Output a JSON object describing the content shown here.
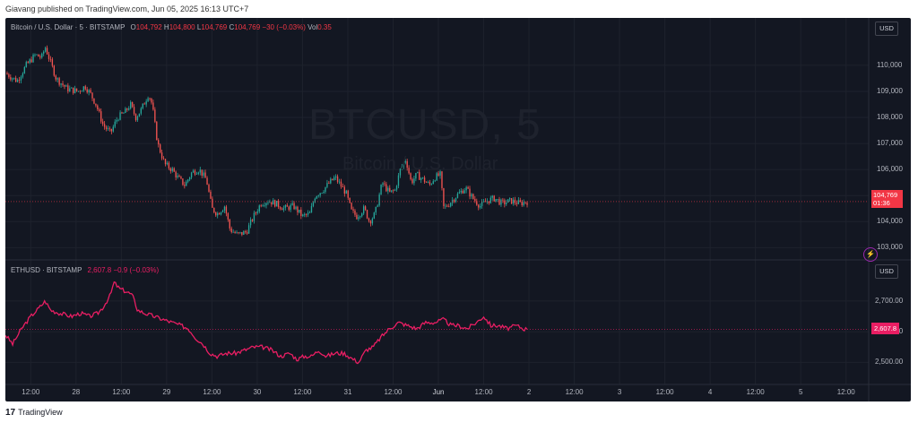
{
  "header": {
    "published_text": "Giavang published on TradingView.com, Jun 05, 2025 16:13 UTC+7"
  },
  "btc_pane": {
    "symbol": "Bitcoin / U.S. Dollar · 5 · BITSTAMP",
    "open_label": "O",
    "open_value": "104,792",
    "high_label": "H",
    "high_value": "104,800",
    "low_label": "L",
    "low_value": "104,769",
    "close_label": "C",
    "close_value": "104,769",
    "change_value": "−30 (−0.03%)",
    "vol_label": "Vol",
    "vol_value": "0.35",
    "currency": "USD",
    "watermark_ticker": "BTCUSD, 5",
    "watermark_name": "Bitcoin / U.S. Dollar",
    "last_price_tag": "104,769",
    "countdown": "01:36",
    "bolt_glyph": "⚡"
  },
  "eth_pane": {
    "symbol": "ETHUSD · BITSTAMP",
    "last_value": "2,607.8",
    "change_value": "−0.9 (−0.03%)",
    "currency": "USD",
    "last_price_tag": "2,607.8"
  },
  "footer": {
    "logo_glyph": "17",
    "brand": "TradingView"
  },
  "colors": {
    "background": "#131722",
    "up": "#26a69a",
    "down": "#ef5350",
    "eth_line": "#e91e63",
    "grid": "#1e222d"
  },
  "chart_data": [
    {
      "type": "candlestick",
      "title": "Bitcoin / U.S. Dollar · 5 · BITSTAMP",
      "ylim": [
        102600,
        111200
      ],
      "yticks": [
        103000,
        104000,
        105000,
        106000,
        107000,
        108000,
        109000,
        110000
      ],
      "ytick_labels": [
        "103,000",
        "104,000",
        "105,000",
        "106,000",
        "107,000",
        "108,000",
        "109,000",
        "110,000"
      ],
      "x_ticks": [
        "12:00",
        "28",
        "12:00",
        "29",
        "12:00",
        "30",
        "12:00",
        "31",
        "12:00",
        "Jun",
        "12:00",
        "2",
        "12:00",
        "3",
        "12:00",
        "4",
        "12:00",
        "5",
        "12:00"
      ],
      "x_tick_times": [
        0.5,
        1,
        1.5,
        2,
        2.5,
        3,
        3.5,
        4,
        4.5,
        5,
        5.5,
        6,
        6.5,
        7,
        7.5,
        8,
        8.5,
        9,
        9.5
      ],
      "xlim": [
        0.22,
        9.75
      ],
      "closes_time": [
        [
          0.22,
          109700
        ],
        [
          0.35,
          109400
        ],
        [
          0.45,
          110000
        ],
        [
          0.55,
          110400
        ],
        [
          0.62,
          110300
        ],
        [
          0.66,
          110700
        ],
        [
          0.72,
          110100
        ],
        [
          0.78,
          109500
        ],
        [
          0.9,
          109100
        ],
        [
          1.02,
          109000
        ],
        [
          1.1,
          109200
        ],
        [
          1.16,
          108900
        ],
        [
          1.22,
          108500
        ],
        [
          1.3,
          107700
        ],
        [
          1.38,
          107400
        ],
        [
          1.46,
          108000
        ],
        [
          1.54,
          108200
        ],
        [
          1.6,
          108500
        ],
        [
          1.66,
          108000
        ],
        [
          1.72,
          108300
        ],
        [
          1.8,
          108900
        ],
        [
          1.84,
          108500
        ],
        [
          1.9,
          107000
        ],
        [
          1.98,
          106200
        ],
        [
          2.06,
          106000
        ],
        [
          2.12,
          105700
        ],
        [
          2.2,
          105400
        ],
        [
          2.28,
          105900
        ],
        [
          2.36,
          106000
        ],
        [
          2.44,
          105600
        ],
        [
          2.5,
          104500
        ],
        [
          2.56,
          104300
        ],
        [
          2.64,
          104600
        ],
        [
          2.7,
          103700
        ],
        [
          2.78,
          103500
        ],
        [
          2.88,
          103600
        ],
        [
          2.96,
          104200
        ],
        [
          3.04,
          104700
        ],
        [
          3.12,
          104800
        ],
        [
          3.2,
          104700
        ],
        [
          3.3,
          104500
        ],
        [
          3.4,
          104600
        ],
        [
          3.5,
          104200
        ],
        [
          3.58,
          104300
        ],
        [
          3.64,
          105000
        ],
        [
          3.72,
          105200
        ],
        [
          3.8,
          105500
        ],
        [
          3.86,
          105700
        ],
        [
          3.92,
          105400
        ],
        [
          3.98,
          105100
        ],
        [
          4.04,
          104400
        ],
        [
          4.1,
          104200
        ],
        [
          4.18,
          104500
        ],
        [
          4.24,
          104000
        ],
        [
          4.3,
          104300
        ],
        [
          4.38,
          105500
        ],
        [
          4.46,
          105100
        ],
        [
          4.52,
          105200
        ],
        [
          4.58,
          106000
        ],
        [
          4.64,
          106400
        ],
        [
          4.7,
          105500
        ],
        [
          4.76,
          105800
        ],
        [
          4.84,
          105600
        ],
        [
          4.9,
          105400
        ],
        [
          4.96,
          105700
        ],
        [
          5.02,
          105800
        ],
        [
          5.06,
          104500
        ],
        [
          5.12,
          104700
        ],
        [
          5.2,
          105000
        ],
        [
          5.3,
          105300
        ],
        [
          5.38,
          104900
        ],
        [
          5.46,
          104600
        ],
        [
          5.54,
          104800
        ],
        [
          5.62,
          104900
        ],
        [
          5.7,
          104700
        ],
        [
          5.8,
          104800
        ],
        [
          5.9,
          104700
        ],
        [
          5.98,
          104769
        ]
      ]
    },
    {
      "type": "line",
      "title": "ETHUSD · BITSTAMP",
      "ylim": [
        2440,
        2790
      ],
      "yticks": [
        2500,
        2600,
        2700
      ],
      "ytick_labels": [
        "2,500.00",
        "2,600.00",
        "2,700.00"
      ],
      "last_value": 2607.8,
      "values_time": [
        [
          0.22,
          2590
        ],
        [
          0.3,
          2560
        ],
        [
          0.4,
          2610
        ],
        [
          0.5,
          2650
        ],
        [
          0.6,
          2680
        ],
        [
          0.66,
          2700
        ],
        [
          0.72,
          2670
        ],
        [
          0.82,
          2660
        ],
        [
          0.95,
          2650
        ],
        [
          1.05,
          2660
        ],
        [
          1.15,
          2650
        ],
        [
          1.24,
          2660
        ],
        [
          1.3,
          2680
        ],
        [
          1.38,
          2720
        ],
        [
          1.42,
          2760
        ],
        [
          1.48,
          2740
        ],
        [
          1.56,
          2730
        ],
        [
          1.62,
          2720
        ],
        [
          1.68,
          2670
        ],
        [
          1.76,
          2660
        ],
        [
          1.86,
          2650
        ],
        [
          1.96,
          2640
        ],
        [
          2.06,
          2630
        ],
        [
          2.16,
          2620
        ],
        [
          2.24,
          2610
        ],
        [
          2.32,
          2580
        ],
        [
          2.4,
          2560
        ],
        [
          2.48,
          2530
        ],
        [
          2.56,
          2520
        ],
        [
          2.66,
          2530
        ],
        [
          2.76,
          2530
        ],
        [
          2.86,
          2540
        ],
        [
          2.96,
          2550
        ],
        [
          3.06,
          2550
        ],
        [
          3.16,
          2540
        ],
        [
          3.26,
          2520
        ],
        [
          3.36,
          2530
        ],
        [
          3.44,
          2510
        ],
        [
          3.52,
          2520
        ],
        [
          3.6,
          2520
        ],
        [
          3.68,
          2540
        ],
        [
          3.76,
          2520
        ],
        [
          3.86,
          2530
        ],
        [
          3.96,
          2530
        ],
        [
          4.06,
          2510
        ],
        [
          4.12,
          2500
        ],
        [
          4.2,
          2540
        ],
        [
          4.28,
          2550
        ],
        [
          4.36,
          2580
        ],
        [
          4.46,
          2610
        ],
        [
          4.56,
          2630
        ],
        [
          4.66,
          2620
        ],
        [
          4.76,
          2610
        ],
        [
          4.86,
          2630
        ],
        [
          4.96,
          2630
        ],
        [
          5.06,
          2640
        ],
        [
          5.14,
          2620
        ],
        [
          5.22,
          2620
        ],
        [
          5.32,
          2610
        ],
        [
          5.42,
          2630
        ],
        [
          5.5,
          2650
        ],
        [
          5.58,
          2620
        ],
        [
          5.66,
          2620
        ],
        [
          5.76,
          2610
        ],
        [
          5.86,
          2620
        ],
        [
          5.94,
          2610
        ],
        [
          5.98,
          2607.8
        ]
      ]
    }
  ]
}
